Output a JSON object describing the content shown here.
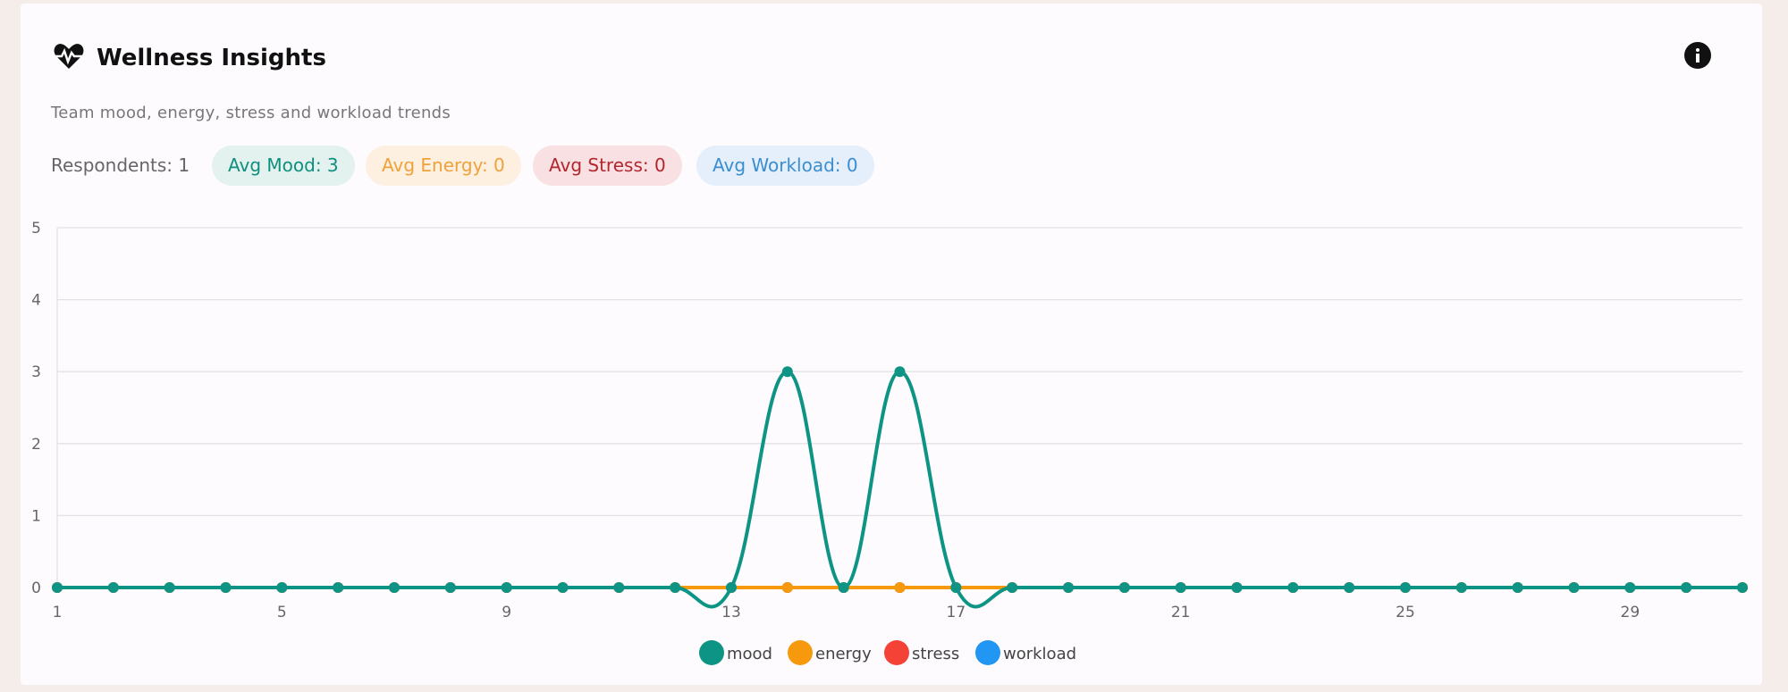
{
  "header": {
    "title": "Wellness Insights",
    "subtitle": "Team mood, energy, stress and workload trends"
  },
  "stats": {
    "respondents": "Respondents: 1",
    "chips": [
      "Avg Mood: 3",
      "Avg Energy: 0",
      "Avg Stress: 0",
      "Avg Workload: 0"
    ]
  },
  "chart_data": {
    "type": "line",
    "x": [
      1,
      2,
      3,
      4,
      5,
      6,
      7,
      8,
      9,
      10,
      11,
      12,
      13,
      14,
      15,
      16,
      17,
      18,
      19,
      20,
      21,
      22,
      23,
      24,
      25,
      26,
      27,
      28,
      29,
      30,
      31
    ],
    "xlim": [
      1,
      31
    ],
    "xticks": [
      1,
      5,
      9,
      13,
      17,
      21,
      25,
      29
    ],
    "ylim": [
      0,
      5
    ],
    "yticks": [
      0,
      1,
      2,
      3,
      4,
      5
    ],
    "grid": true,
    "legend": "bottom",
    "series": [
      {
        "name": "mood",
        "color": "#0d9484",
        "values": [
          0,
          0,
          0,
          0,
          0,
          0,
          0,
          0,
          0,
          0,
          0,
          0,
          0,
          3,
          0,
          3,
          0,
          0,
          0,
          0,
          0,
          0,
          0,
          0,
          0,
          0,
          0,
          0,
          0,
          0,
          0
        ]
      },
      {
        "name": "energy",
        "color": "#f7990c",
        "values": [
          0,
          0,
          0,
          0,
          0,
          0,
          0,
          0,
          0,
          0,
          0,
          0,
          0,
          0,
          0,
          0,
          0,
          0,
          0,
          0,
          0,
          0,
          0,
          0,
          0,
          0,
          0,
          0,
          0,
          0,
          0
        ]
      },
      {
        "name": "stress",
        "color": "#f44336",
        "values": [
          0,
          0,
          0,
          0,
          0,
          0,
          0,
          0,
          0,
          0,
          0,
          0,
          0,
          0,
          0,
          0,
          0,
          0,
          0,
          0,
          0,
          0,
          0,
          0,
          0,
          0,
          0,
          0,
          0,
          0,
          0
        ]
      },
      {
        "name": "workload",
        "color": "#2196f3",
        "values": [
          0,
          0,
          0,
          0,
          0,
          0,
          0,
          0,
          0,
          0,
          0,
          0,
          0,
          0,
          0,
          0,
          0,
          0,
          0,
          0,
          0,
          0,
          0,
          0,
          0,
          0,
          0,
          0,
          0,
          0,
          0
        ]
      }
    ]
  }
}
